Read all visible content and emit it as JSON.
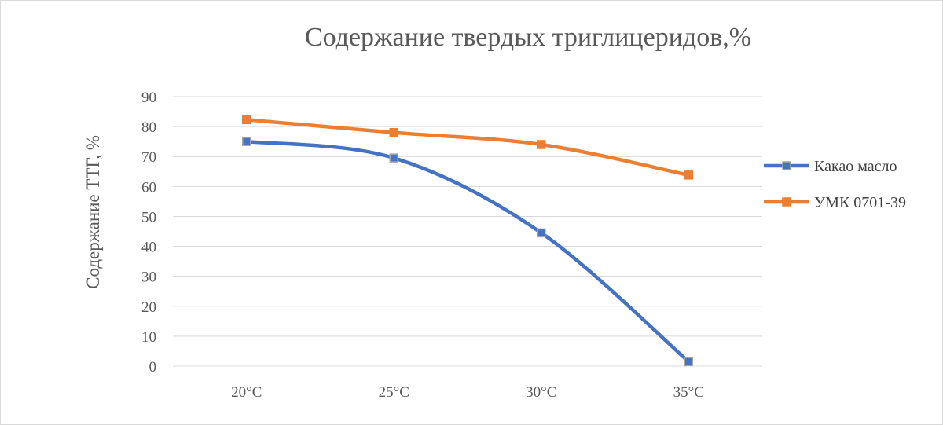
{
  "chart_data": {
    "type": "line",
    "title": "Содержание твердых триглицеридов,%",
    "xlabel": "",
    "ylabel": "Содержание ТТГ, %",
    "categories": [
      "20°C",
      "25°C",
      "30°C",
      "35°C"
    ],
    "ylim": [
      0,
      90
    ],
    "yticks": [
      0,
      10,
      20,
      30,
      40,
      50,
      60,
      70,
      80,
      90
    ],
    "grid": true,
    "legend_position": "right",
    "series": [
      {
        "name": "Какао масло",
        "values": [
          75,
          69.5,
          44.5,
          1.5
        ],
        "color": "#4472C4",
        "marker_fill": "#4472C4",
        "marker_stroke": "#A5A5A5"
      },
      {
        "name": "УМК 0701-39",
        "values": [
          82.3,
          78,
          74,
          63.8
        ],
        "color": "#ED7D31",
        "marker_fill": "#ED7D31",
        "marker_stroke": "#ED7D31"
      }
    ]
  }
}
